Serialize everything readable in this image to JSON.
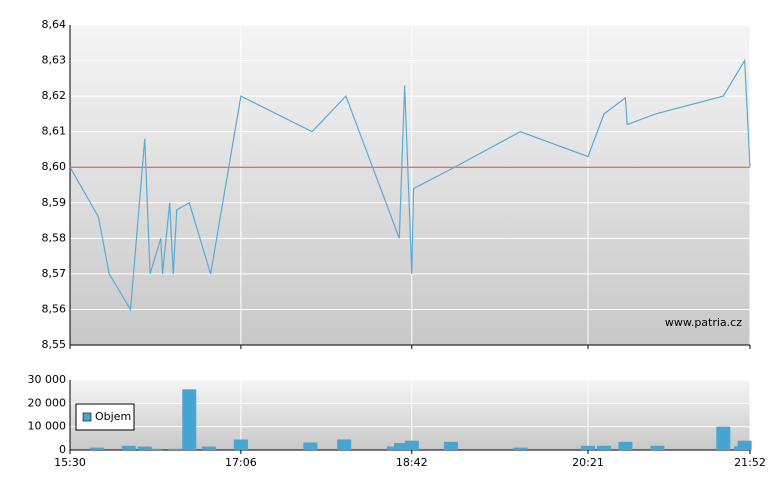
{
  "chart_data": [
    {
      "type": "line",
      "watermark": "www.patria.cz",
      "color": "#5aaad6",
      "reference_line": 8.6,
      "reference_color": "#e04040",
      "x": [
        "15:30",
        "15:46",
        "15:52",
        "16:04",
        "16:12",
        "16:15",
        "16:21",
        "16:22",
        "16:26",
        "16:28",
        "16:30",
        "16:37",
        "16:49",
        "17:06",
        "17:46",
        "18:05",
        "18:35",
        "18:38",
        "18:42",
        "18:43",
        "19:06",
        "19:43",
        "20:21",
        "20:30",
        "20:42",
        "20:43",
        "20:59",
        "21:37",
        "21:49",
        "21:52"
      ],
      "values": [
        8.6,
        8.586,
        8.57,
        8.56,
        8.608,
        8.57,
        8.58,
        8.57,
        8.59,
        8.57,
        8.588,
        8.59,
        8.57,
        8.62,
        8.61,
        8.62,
        8.58,
        8.623,
        8.57,
        8.594,
        8.6,
        8.61,
        8.603,
        8.615,
        8.6195,
        8.612,
        8.615,
        8.62,
        8.63,
        8.6
      ],
      "xlim": [
        "15:30",
        "21:52"
      ],
      "xticks": [
        "15:30",
        "17:06",
        "18:42",
        "20:21",
        "21:52"
      ],
      "ylim": [
        8.55,
        8.64
      ],
      "yticks": [
        {
          "value": 8.55,
          "label": "8,55"
        },
        {
          "value": 8.56,
          "label": "8,56"
        },
        {
          "value": 8.57,
          "label": "8,57"
        },
        {
          "value": 8.58,
          "label": "8,58"
        },
        {
          "value": 8.59,
          "label": "8,59"
        },
        {
          "value": 8.6,
          "label": "8,60"
        },
        {
          "value": 8.61,
          "label": "8,61"
        },
        {
          "value": 8.62,
          "label": "8,62"
        },
        {
          "value": 8.63,
          "label": "8,63"
        },
        {
          "value": 8.64,
          "label": "8,64"
        }
      ],
      "grid": true
    },
    {
      "type": "bar",
      "legend": "top-left",
      "x": [
        "15:45",
        "16:03",
        "16:12",
        "16:18",
        "16:29",
        "16:37",
        "16:48",
        "17:06",
        "17:45",
        "18:04",
        "18:32",
        "18:36",
        "18:42",
        "19:04",
        "19:43",
        "20:21",
        "20:30",
        "20:42",
        "21:00",
        "21:37",
        "21:47",
        "21:49"
      ],
      "series": [
        {
          "name": "Objem",
          "color": "#45a6d3",
          "values": [
            1000,
            1800,
            1500,
            500,
            500,
            26000,
            1500,
            4500,
            3200,
            4500,
            1500,
            3000,
            4000,
            3500,
            1000,
            1800,
            1800,
            3500,
            1800,
            10000,
            1500,
            4000
          ]
        }
      ],
      "xlim": [
        "15:30",
        "21:52"
      ],
      "xticks": [
        "15:30",
        "17:06",
        "18:42",
        "20:21",
        "21:52"
      ],
      "ylim": [
        0,
        30000
      ],
      "yticks": [
        0,
        {
          "value": 10000,
          "label": "10 000"
        },
        {
          "value": 20000,
          "label": "20 000"
        },
        {
          "value": 30000,
          "label": "30 000"
        }
      ],
      "grid": true
    }
  ]
}
